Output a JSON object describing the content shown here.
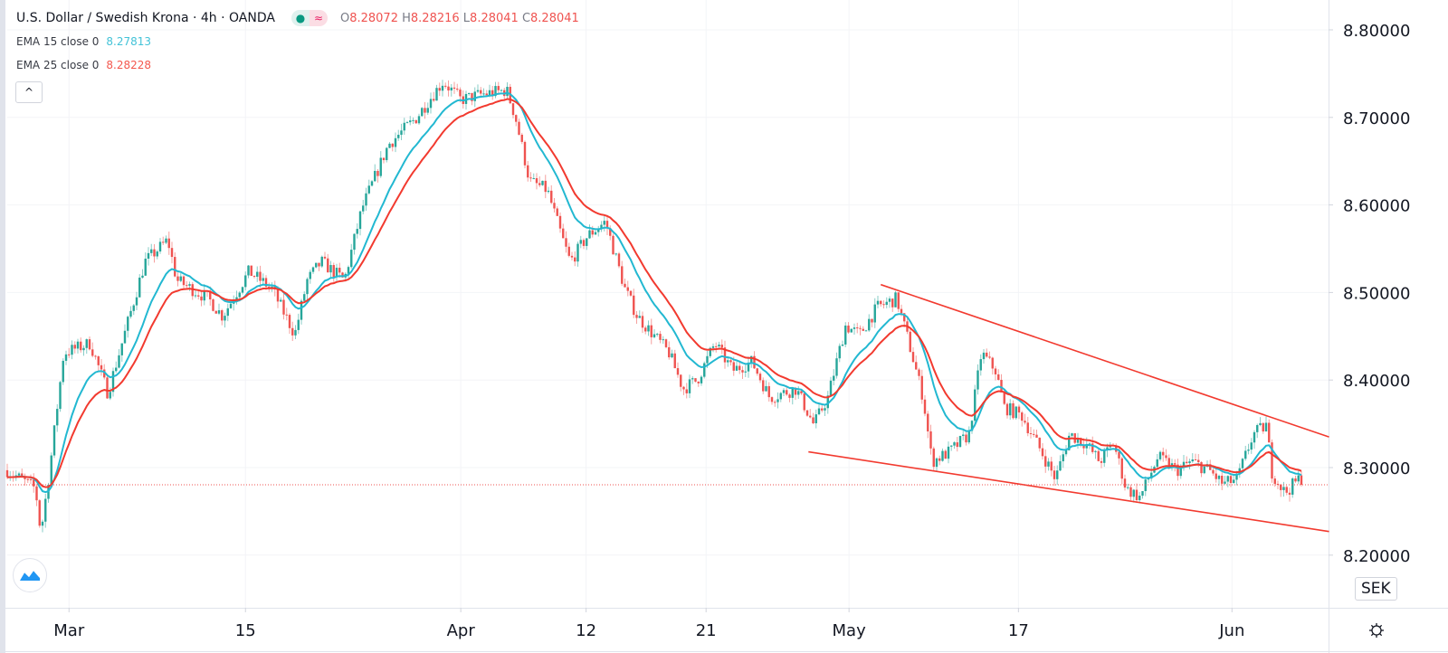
{
  "header": {
    "symbol_title": "U.S. Dollar / Swedish Krona · 4h · OANDA",
    "market_status_icon": "dot-icon",
    "delay_icon": "approx-icon",
    "ohlc": [
      {
        "label": "O",
        "value": "8.28072"
      },
      {
        "label": "H",
        "value": "8.28216"
      },
      {
        "label": "L",
        "value": "8.28041"
      },
      {
        "label": "C",
        "value": "8.28041"
      }
    ]
  },
  "indicators": [
    {
      "label": "EMA 15 close 0",
      "value": "8.27813",
      "color": "#22b8d1"
    },
    {
      "label": "EMA 25 close 0",
      "value": "8.28228",
      "color": "#f23a2f"
    }
  ],
  "collapse_label": "^",
  "currency_button": "SEK",
  "chart_data": {
    "type": "candlestick",
    "title": "U.S. Dollar / Swedish Krona · 4h · OANDA",
    "ylim": [
      8.15,
      8.84
    ],
    "ytick_values": [
      8.2,
      8.3,
      8.4,
      8.5,
      8.6,
      8.7,
      8.8
    ],
    "ytick_labels": [
      "8.20000",
      "8.30000",
      "8.40000",
      "8.50000",
      "8.60000",
      "8.70000",
      "8.80000"
    ],
    "xlim_trading_days": [
      0,
      75
    ],
    "xticks": [
      {
        "day": 3.5,
        "label": "Mar"
      },
      {
        "day": 13.5,
        "label": "15"
      },
      {
        "day": 25.7,
        "label": "Apr"
      },
      {
        "day": 32.8,
        "label": "12"
      },
      {
        "day": 39.6,
        "label": "21"
      },
      {
        "day": 47.7,
        "label": "May"
      },
      {
        "day": 57.3,
        "label": "17"
      },
      {
        "day": 69.4,
        "label": "Jun"
      }
    ],
    "bars_per_day": 6,
    "close_path": [
      [
        0,
        8.297
      ],
      [
        1.6,
        8.276
      ],
      [
        1.9,
        8.225
      ],
      [
        2.4,
        8.297
      ],
      [
        3.2,
        8.431
      ],
      [
        4.7,
        8.442
      ],
      [
        5.7,
        8.385
      ],
      [
        7.8,
        8.535
      ],
      [
        9.1,
        8.56
      ],
      [
        9.6,
        8.514
      ],
      [
        11.4,
        8.493
      ],
      [
        12.2,
        8.473
      ],
      [
        13.7,
        8.524
      ],
      [
        15,
        8.504
      ],
      [
        16.3,
        8.452
      ],
      [
        17,
        8.514
      ],
      [
        17.8,
        8.535
      ],
      [
        19.1,
        8.514
      ],
      [
        20.1,
        8.596
      ],
      [
        21.6,
        8.669
      ],
      [
        23.2,
        8.7
      ],
      [
        23.9,
        8.72
      ],
      [
        24.7,
        8.741
      ],
      [
        25.7,
        8.72
      ],
      [
        26.8,
        8.726
      ],
      [
        28.3,
        8.731
      ],
      [
        28.8,
        8.7
      ],
      [
        29.6,
        8.627
      ],
      [
        30.6,
        8.617
      ],
      [
        31.4,
        8.565
      ],
      [
        31.9,
        8.535
      ],
      [
        32.9,
        8.565
      ],
      [
        33.9,
        8.581
      ],
      [
        35,
        8.504
      ],
      [
        35.7,
        8.473
      ],
      [
        37.5,
        8.431
      ],
      [
        38.3,
        8.39
      ],
      [
        39.1,
        8.4
      ],
      [
        40.1,
        8.442
      ],
      [
        41.1,
        8.411
      ],
      [
        42.2,
        8.421
      ],
      [
        43.2,
        8.38
      ],
      [
        44.7,
        8.39
      ],
      [
        45.7,
        8.349
      ],
      [
        46.5,
        8.38
      ],
      [
        47.5,
        8.462
      ],
      [
        48.3,
        8.452
      ],
      [
        49.3,
        8.483
      ],
      [
        50.4,
        8.493
      ],
      [
        51.1,
        8.442
      ],
      [
        51.9,
        8.38
      ],
      [
        52.4,
        8.307
      ],
      [
        53.4,
        8.318
      ],
      [
        54.5,
        8.338
      ],
      [
        55.2,
        8.431
      ],
      [
        56,
        8.411
      ],
      [
        56.5,
        8.369
      ],
      [
        57.5,
        8.359
      ],
      [
        58.6,
        8.318
      ],
      [
        59.4,
        8.287
      ],
      [
        60.2,
        8.338
      ],
      [
        61.1,
        8.328
      ],
      [
        61.9,
        8.307
      ],
      [
        62.7,
        8.328
      ],
      [
        63.4,
        8.276
      ],
      [
        64.2,
        8.266
      ],
      [
        65.2,
        8.312
      ],
      [
        66.3,
        8.297
      ],
      [
        67.1,
        8.307
      ],
      [
        68.1,
        8.297
      ],
      [
        68.9,
        8.281
      ],
      [
        69.7,
        8.287
      ],
      [
        70.6,
        8.338
      ],
      [
        71.4,
        8.349
      ],
      [
        71.6,
        8.297
      ],
      [
        72.4,
        8.271
      ],
      [
        73.2,
        8.287
      ],
      [
        73.4,
        8.2804
      ]
    ],
    "series": [
      {
        "name": "EMA 15 close 0",
        "period": 15,
        "color": "#22b8d1"
      },
      {
        "name": "EMA 25 close 0",
        "period": 25,
        "color": "#f23a2f"
      }
    ],
    "trendlines": [
      {
        "name": "upper",
        "from": [
          49.5,
          8.509
        ],
        "to": [
          74.9,
          8.335
        ],
        "color": "#f23a2f"
      },
      {
        "name": "lower",
        "from": [
          45.4,
          8.318
        ],
        "to": [
          74.9,
          8.227
        ],
        "color": "#f23a2f"
      }
    ],
    "last_price": 8.28041,
    "up_color": "#26a69a",
    "down_color": "#ef5350"
  }
}
